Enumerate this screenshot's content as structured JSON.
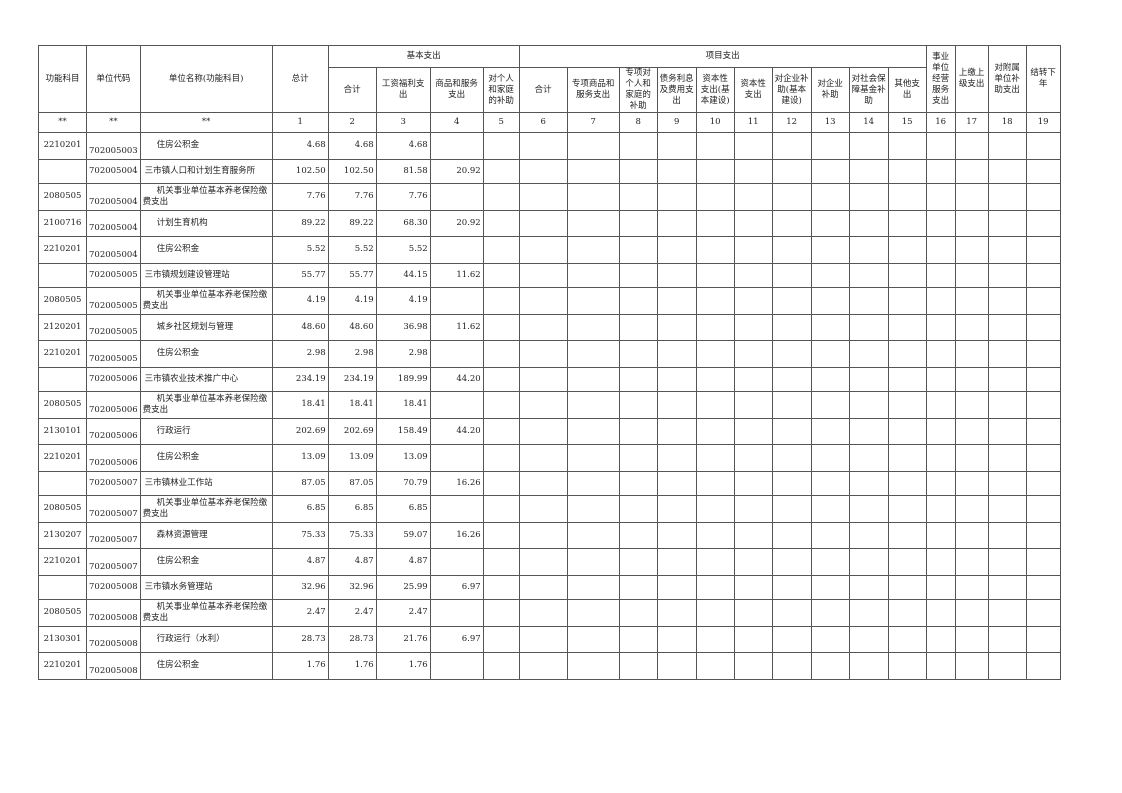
{
  "header": {
    "func_subject": "功能科目",
    "unit_code": "单位代码",
    "unit_name": "单位名称(功能科目)",
    "total": "总计",
    "basic_group": "基本支出",
    "project_group": "项目支出",
    "basic_cols": [
      "合计",
      "工资福利支出",
      "商品和服务支出",
      "对个人和家庭的补助"
    ],
    "project_cols": [
      "合计",
      "专项商品和服务支出",
      "专项对个人和家庭的补助",
      "债务利息及费用支出",
      "资本性支出(基本建设)",
      "资本性支出",
      "对企业补助(基本建设)",
      "对企业补助",
      "对社会保障基金补助",
      "其他支出"
    ],
    "tail_cols": [
      "事业单位经营服务支出",
      "上缴上级支出",
      "对附属单位补助支出",
      "结转下年"
    ],
    "number_row": [
      "**",
      "**",
      "**",
      "1",
      "2",
      "3",
      "4",
      "5",
      "6",
      "7",
      "8",
      "9",
      "10",
      "11",
      "12",
      "13",
      "14",
      "15",
      "16",
      "17",
      "18",
      "19"
    ]
  },
  "rows": [
    {
      "type": "detail",
      "func": "2210201",
      "code": "702005003",
      "name": "住房公积金",
      "total": "4.68",
      "b_total": "4.68",
      "wage": "4.68",
      "goods": "",
      "indiv": ""
    },
    {
      "type": "unit",
      "func": "",
      "code": "702005004",
      "name": "三市镇人口和计划生育服务所",
      "total": "102.50",
      "b_total": "102.50",
      "wage": "81.58",
      "goods": "20.92",
      "indiv": ""
    },
    {
      "type": "detail",
      "func": "2080505",
      "code": "702005004",
      "name": "机关事业单位基本养老保险缴费支出",
      "total": "7.76",
      "b_total": "7.76",
      "wage": "7.76",
      "goods": "",
      "indiv": ""
    },
    {
      "type": "detail",
      "func": "2100716",
      "code": "702005004",
      "name": "计划生育机构",
      "total": "89.22",
      "b_total": "89.22",
      "wage": "68.30",
      "goods": "20.92",
      "indiv": ""
    },
    {
      "type": "detail",
      "func": "2210201",
      "code": "702005004",
      "name": "住房公积金",
      "total": "5.52",
      "b_total": "5.52",
      "wage": "5.52",
      "goods": "",
      "indiv": ""
    },
    {
      "type": "unit",
      "func": "",
      "code": "702005005",
      "name": "三市镇规划建设管理站",
      "total": "55.77",
      "b_total": "55.77",
      "wage": "44.15",
      "goods": "11.62",
      "indiv": ""
    },
    {
      "type": "detail",
      "func": "2080505",
      "code": "702005005",
      "name": "机关事业单位基本养老保险缴费支出",
      "total": "4.19",
      "b_total": "4.19",
      "wage": "4.19",
      "goods": "",
      "indiv": ""
    },
    {
      "type": "detail",
      "func": "2120201",
      "code": "702005005",
      "name": "城乡社区规划与管理",
      "total": "48.60",
      "b_total": "48.60",
      "wage": "36.98",
      "goods": "11.62",
      "indiv": ""
    },
    {
      "type": "detail",
      "func": "2210201",
      "code": "702005005",
      "name": "住房公积金",
      "total": "2.98",
      "b_total": "2.98",
      "wage": "2.98",
      "goods": "",
      "indiv": ""
    },
    {
      "type": "unit",
      "func": "",
      "code": "702005006",
      "name": "三市镇农业技术推广中心",
      "total": "234.19",
      "b_total": "234.19",
      "wage": "189.99",
      "goods": "44.20",
      "indiv": ""
    },
    {
      "type": "detail",
      "func": "2080505",
      "code": "702005006",
      "name": "机关事业单位基本养老保险缴费支出",
      "total": "18.41",
      "b_total": "18.41",
      "wage": "18.41",
      "goods": "",
      "indiv": ""
    },
    {
      "type": "detail",
      "func": "2130101",
      "code": "702005006",
      "name": "行政运行",
      "total": "202.69",
      "b_total": "202.69",
      "wage": "158.49",
      "goods": "44.20",
      "indiv": ""
    },
    {
      "type": "detail",
      "func": "2210201",
      "code": "702005006",
      "name": "住房公积金",
      "total": "13.09",
      "b_total": "13.09",
      "wage": "13.09",
      "goods": "",
      "indiv": ""
    },
    {
      "type": "unit",
      "func": "",
      "code": "702005007",
      "name": "三市镇林业工作站",
      "total": "87.05",
      "b_total": "87.05",
      "wage": "70.79",
      "goods": "16.26",
      "indiv": ""
    },
    {
      "type": "detail",
      "func": "2080505",
      "code": "702005007",
      "name": "机关事业单位基本养老保险缴费支出",
      "total": "6.85",
      "b_total": "6.85",
      "wage": "6.85",
      "goods": "",
      "indiv": ""
    },
    {
      "type": "detail",
      "func": "2130207",
      "code": "702005007",
      "name": "森林资源管理",
      "total": "75.33",
      "b_total": "75.33",
      "wage": "59.07",
      "goods": "16.26",
      "indiv": ""
    },
    {
      "type": "detail",
      "func": "2210201",
      "code": "702005007",
      "name": "住房公积金",
      "total": "4.87",
      "b_total": "4.87",
      "wage": "4.87",
      "goods": "",
      "indiv": ""
    },
    {
      "type": "unit",
      "func": "",
      "code": "702005008",
      "name": "三市镇水务管理站",
      "total": "32.96",
      "b_total": "32.96",
      "wage": "25.99",
      "goods": "6.97",
      "indiv": ""
    },
    {
      "type": "detail",
      "func": "2080505",
      "code": "702005008",
      "name": "机关事业单位基本养老保险缴费支出",
      "total": "2.47",
      "b_total": "2.47",
      "wage": "2.47",
      "goods": "",
      "indiv": ""
    },
    {
      "type": "detail",
      "func": "2130301",
      "code": "702005008",
      "name": "行政运行（水利）",
      "total": "28.73",
      "b_total": "28.73",
      "wage": "21.76",
      "goods": "6.97",
      "indiv": ""
    },
    {
      "type": "detail",
      "func": "2210201",
      "code": "702005008",
      "name": "住房公积金",
      "total": "1.76",
      "b_total": "1.76",
      "wage": "1.76",
      "goods": "",
      "indiv": ""
    }
  ]
}
